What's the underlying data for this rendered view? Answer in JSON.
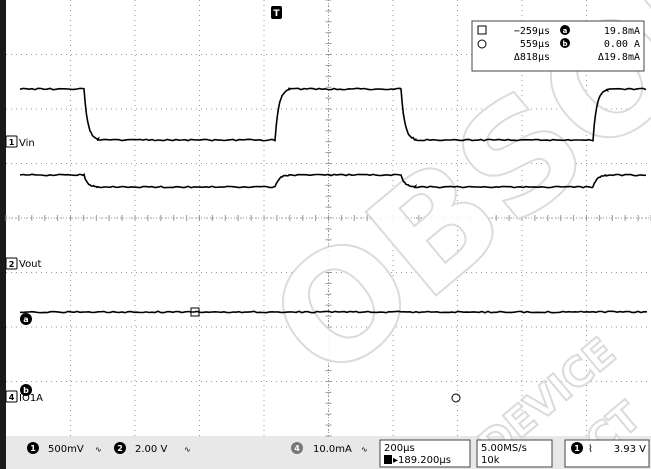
{
  "trigger_marker": "T",
  "channels": {
    "ch1": {
      "label": "Vin",
      "number": "1"
    },
    "ch2": {
      "label": "Vout",
      "number": "2"
    },
    "ch4": {
      "label": "IO1A",
      "number": "4"
    }
  },
  "cursor_letters": {
    "a": "a",
    "b": "b"
  },
  "cursor_readout": {
    "t1": "−259µs",
    "t2": "559µs",
    "dt": "Δ818µs",
    "a_val": "19.8mA",
    "b_val": "0.00 A",
    "da": "Δ19.8mA"
  },
  "status_bar": {
    "ch1_num": "1",
    "ch1_scale": "500mV",
    "ch2_num": "2",
    "ch2_scale": "2.00 V",
    "ch4_num": "4",
    "ch4_scale": "10.0mA",
    "timebase": "200µs",
    "trigger_pos": "▸189.200µs",
    "sample_rate": "5.00MS/s",
    "record": "10k",
    "trig_ch": "1",
    "trig_level": "3.93 V"
  },
  "watermark": {
    "line1": "OBSOL",
    "line2": "DEVICE",
    "line3": "CT"
  },
  "colors": {
    "trace": "#000000",
    "grid": "#9a9a9a",
    "frame": "#1a1a1a",
    "status_bg": "#e8e8e8"
  }
}
